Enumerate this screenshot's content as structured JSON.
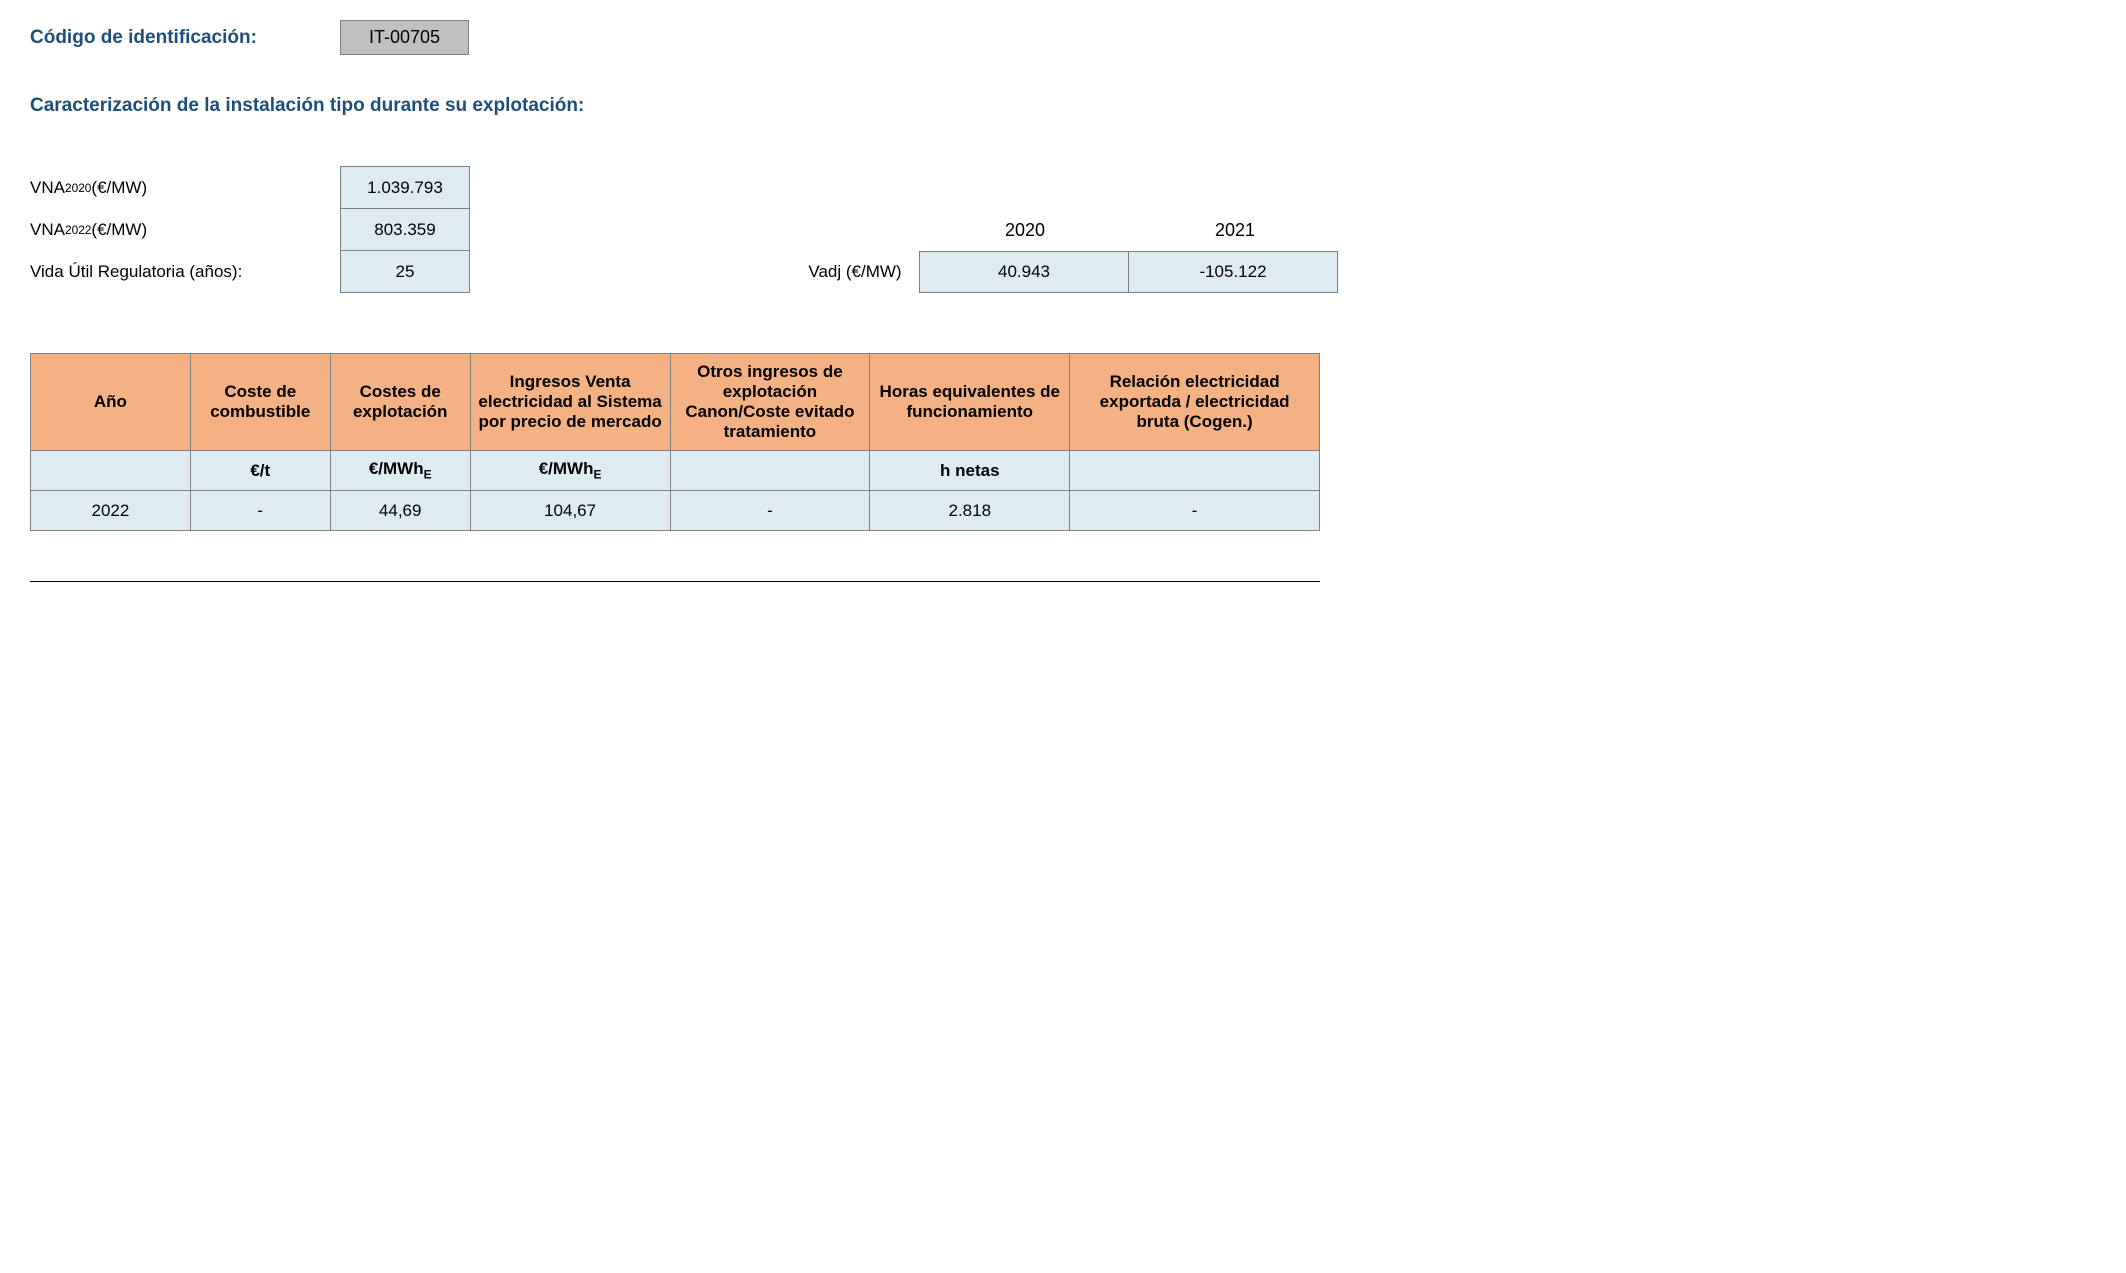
{
  "header": {
    "code_label": "Código de identificación:",
    "code_value": "IT-00705"
  },
  "section_title": "Caracterización de la instalación tipo durante su explotación:",
  "params": {
    "vna2020": {
      "label_prefix": "VNA",
      "label_sub": "2020",
      "label_suffix": " (€/MW)",
      "value": "1.039.793"
    },
    "vna2022": {
      "label_prefix": "VNA",
      "label_sub": "2022",
      "label_suffix": " (€/MW)",
      "value": "803.359"
    },
    "vida": {
      "label": "Vida Útil Regulatoria (años):",
      "value": "25"
    }
  },
  "vadj": {
    "label": "Vadj (€/MW)",
    "years": [
      "2020",
      "2021"
    ],
    "values": [
      "40.943",
      "-105.122"
    ]
  },
  "table": {
    "headers": [
      "Año",
      "Coste de combustible",
      "Costes de explotación",
      "Ingresos Venta electricidad al Sistema por precio de mercado",
      "Otros ingresos de explotación Canon/Coste evitado tratamiento",
      "Horas equivalentes de funcionamiento",
      "Relación electricidad exportada / electricidad bruta (Cogen.)"
    ],
    "unit_row": {
      "c0": "",
      "c1": "€/t",
      "c2_prefix": "€/MWh",
      "c2_sub": "E",
      "c3_prefix": "€/MWh",
      "c3_sub": "E",
      "c4": "",
      "c5": "h netas",
      "c6": ""
    },
    "data_row": {
      "c0": "2022",
      "c1": "-",
      "c2": "44,69",
      "c3": "104,67",
      "c4": "-",
      "c5": "2.818",
      "c6": "-"
    }
  },
  "colors": {
    "heading": "#1f4e79",
    "code_bg": "#c0c0c0",
    "cell_bg": "#deebf3",
    "th_bg": "#f4b183",
    "border": "#808080"
  }
}
